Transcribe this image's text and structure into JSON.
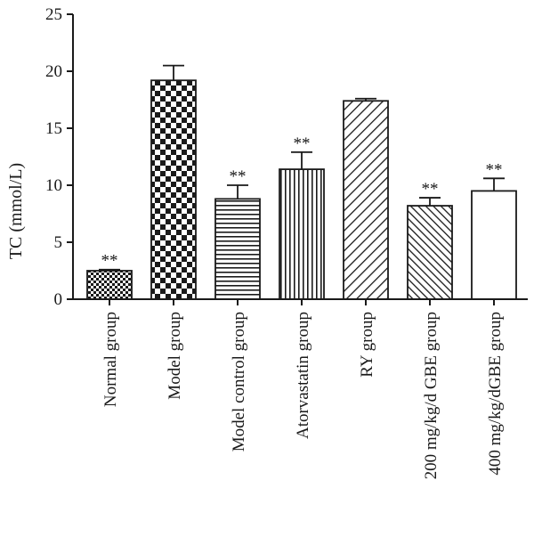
{
  "chart_data": {
    "type": "bar",
    "title": "",
    "xlabel": "",
    "ylabel": "TC (mmol/L)",
    "ylim": [
      0,
      25
    ],
    "yticks": [
      0,
      5,
      10,
      15,
      20,
      25
    ],
    "grid": false,
    "legend": "none",
    "categories": [
      "Normal group",
      "Model group",
      "Model control group",
      "Atorvastatin group",
      "RY group",
      "200 mg/kg/d GBE group",
      "400 mg/kg/dGBE group"
    ],
    "values": [
      2.5,
      19.2,
      8.8,
      11.4,
      17.4,
      8.2,
      9.5
    ],
    "errors": [
      0.1,
      1.3,
      1.2,
      1.5,
      0.2,
      0.7,
      1.1
    ],
    "significance": [
      "**",
      "",
      "**",
      "**",
      "",
      "**",
      "**"
    ],
    "patterns": [
      "small-checker",
      "large-checker",
      "horizontal-lines",
      "vertical-lines",
      "diagonal-lines",
      "dense-diagonal-lines",
      "blank"
    ]
  }
}
